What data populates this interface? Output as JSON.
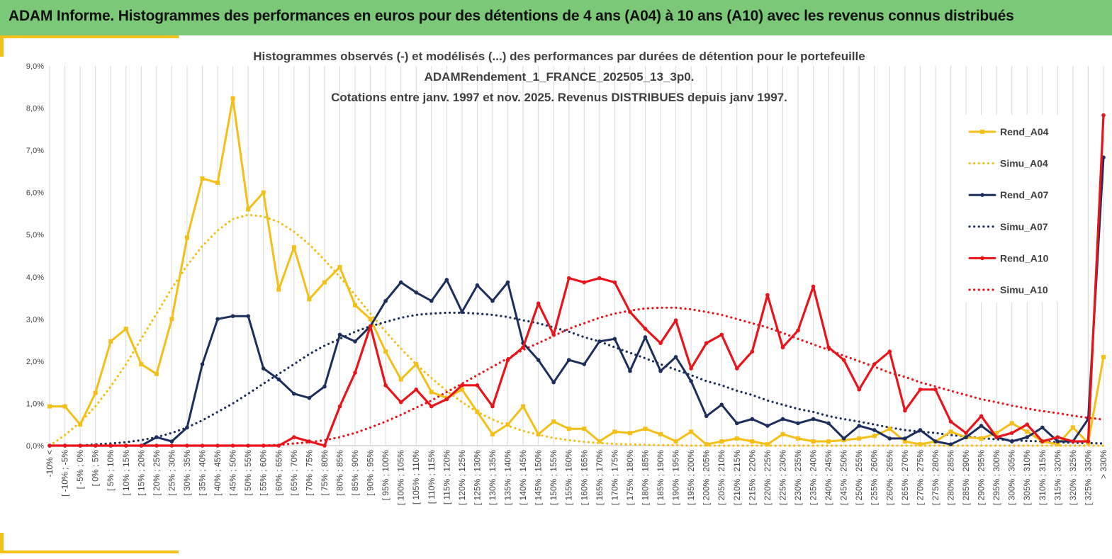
{
  "header": {
    "title": "ADAM Informe. Histogrammes des performances en euros pour des détentions de 4 ans (A04) à 10 ans (A10) avec les revenus connus distribués"
  },
  "colors": {
    "header_bg": "#7cc879",
    "accent": "#f2c21b",
    "a04": "#f4bf16",
    "a07": "#1c2e5c",
    "a10": "#e8141a"
  },
  "chart_data": {
    "type": "line",
    "title": [
      "Histogrammes observés (-) et modélisés (...) des performances par durées de détention pour le portefeuille",
      "ADAMRendement_1_FRANCE_202505_13_3p0.",
      "Cotations entre janv. 1997 et nov. 2025. Revenus DISTRIBUES depuis janv 1997."
    ],
    "ylim": [
      0,
      9
    ],
    "yticks": [
      0,
      1,
      2,
      3,
      4,
      5,
      6,
      7,
      8,
      9
    ],
    "ytick_labels": [
      "0,0%",
      "1,0%",
      "2,0%",
      "3,0%",
      "4,0%",
      "5,0%",
      "6,0%",
      "7,0%",
      "8,0%",
      "9,0%"
    ],
    "grid": "vertical",
    "legend_position": "right",
    "categories": [
      "-10% <",
      "[ -10% ; -5%",
      "[ -5% ; 0%",
      "[ 0% ; 5%",
      "[ 5% ; 10%",
      "[ 10% ; 15%",
      "[ 15% ; 20%",
      "[ 20% ; 25%",
      "[ 25% ; 30%",
      "[ 30% ; 35%",
      "[ 35% ; 40%",
      "[ 40% ; 45%",
      "[ 45% ; 50%",
      "[ 50% ; 55%",
      "[ 55% ; 60%",
      "[ 60% ; 65%",
      "[ 65% ; 70%",
      "[ 70% ; 75%",
      "[ 75% ; 80%",
      "[ 80% ; 85%",
      "[ 85% ; 90%",
      "[ 90% ; 95%",
      "[ 95% ; 100%",
      "[ 100% ; 105%",
      "[ 105% ; 110%",
      "[ 110% ; 115%",
      "[ 115% ; 120%",
      "[ 120% ; 125%",
      "[ 125% ; 130%",
      "[ 130% ; 135%",
      "[ 135% ; 140%",
      "[ 140% ; 145%",
      "[ 145% ; 150%",
      "[ 150% ; 155%",
      "[ 155% ; 160%",
      "[ 160% ; 165%",
      "[ 165% ; 170%",
      "[ 170% ; 175%",
      "[ 175% ; 180%",
      "[ 180% ; 185%",
      "[ 185% ; 190%",
      "[ 190% ; 195%",
      "[ 195% ; 200%",
      "[ 200% ; 205%",
      "[ 205% ; 210%",
      "[ 210% ; 215%",
      "[ 215% ; 220%",
      "[ 220% ; 225%",
      "[ 225% ; 230%",
      "[ 230% ; 235%",
      "[ 235% ; 240%",
      "[ 240% ; 245%",
      "[ 245% ; 250%",
      "[ 250% ; 255%",
      "[ 255% ; 260%",
      "[ 260% ; 265%",
      "[ 265% ; 270%",
      "[ 270% ; 275%",
      "[ 275% ; 280%",
      "[ 280% ; 285%",
      "[ 285% ; 290%",
      "[ 290% ; 295%",
      "[ 295% ; 300%",
      "[ 300% ; 305%",
      "[ 305% ; 310%",
      "[ 310% ; 315%",
      "[ 315% ; 320%",
      "[ 320% ; 325%",
      "[ 325% ; 330%",
      "> 330%"
    ],
    "series": [
      {
        "name": "Rend_A04",
        "style": "solid",
        "color": "#f4bf16",
        "marker": "square",
        "values": [
          0.93,
          0.93,
          0.5,
          1.25,
          2.47,
          2.77,
          1.93,
          1.7,
          3.0,
          4.93,
          6.33,
          6.23,
          8.23,
          5.6,
          6.0,
          3.7,
          4.7,
          3.47,
          3.87,
          4.23,
          3.33,
          3.0,
          2.23,
          1.57,
          1.93,
          1.27,
          1.13,
          1.33,
          0.8,
          0.27,
          0.5,
          0.93,
          0.27,
          0.57,
          0.4,
          0.4,
          0.1,
          0.33,
          0.3,
          0.4,
          0.27,
          0.1,
          0.33,
          0.03,
          0.1,
          0.17,
          0.1,
          0.03,
          0.27,
          0.17,
          0.1,
          0.1,
          0.13,
          0.17,
          0.23,
          0.4,
          0.1,
          0.03,
          0.1,
          0.33,
          0.2,
          0.17,
          0.3,
          0.53,
          0.33,
          0.1,
          0.03,
          0.43,
          0.07,
          2.1
        ]
      },
      {
        "name": "Simu_A04",
        "style": "dotted",
        "color": "#f4bf16",
        "values": [
          0.0,
          0.25,
          0.55,
          0.93,
          1.4,
          1.93,
          2.53,
          3.13,
          3.73,
          4.27,
          4.73,
          5.1,
          5.37,
          5.47,
          5.43,
          5.3,
          5.07,
          4.77,
          4.4,
          4.0,
          3.57,
          3.13,
          2.7,
          2.3,
          1.93,
          1.6,
          1.3,
          1.03,
          0.8,
          0.62,
          0.47,
          0.35,
          0.26,
          0.18,
          0.13,
          0.09,
          0.06,
          0.04,
          0.03,
          0.02,
          0.01,
          0.01,
          0.0,
          0.0,
          0.0,
          0.0,
          0.0,
          0.0,
          0.0,
          0.0,
          0.0,
          0.0,
          0.0,
          0.0,
          0.0,
          0.0,
          0.0,
          0.0,
          0.0,
          0.0,
          0.0,
          0.0,
          0.0,
          0.0,
          0.0,
          0.0,
          0.0,
          0.0,
          0.0,
          0.0
        ]
      },
      {
        "name": "Rend_A07",
        "style": "solid",
        "color": "#1c2e5c",
        "marker": "circle",
        "values": [
          0.0,
          0.0,
          0.0,
          0.0,
          0.0,
          0.0,
          0.0,
          0.2,
          0.1,
          0.43,
          1.93,
          3.0,
          3.07,
          3.07,
          1.83,
          1.57,
          1.23,
          1.13,
          1.4,
          2.63,
          2.47,
          2.83,
          3.43,
          3.87,
          3.63,
          3.43,
          3.93,
          3.17,
          3.8,
          3.43,
          3.87,
          2.43,
          2.03,
          1.5,
          2.03,
          1.93,
          2.47,
          2.53,
          1.77,
          2.57,
          1.77,
          2.1,
          1.53,
          0.7,
          0.97,
          0.53,
          0.63,
          0.47,
          0.63,
          0.53,
          0.63,
          0.53,
          0.17,
          0.47,
          0.37,
          0.17,
          0.17,
          0.37,
          0.1,
          0.03,
          0.2,
          0.47,
          0.2,
          0.1,
          0.2,
          0.43,
          0.1,
          0.1,
          0.63,
          6.83
        ]
      },
      {
        "name": "Simu_A07",
        "style": "dotted",
        "color": "#1c2e5c",
        "values": [
          0.0,
          0.0,
          0.0,
          0.03,
          0.05,
          0.08,
          0.13,
          0.2,
          0.3,
          0.43,
          0.6,
          0.8,
          1.0,
          1.23,
          1.47,
          1.7,
          1.93,
          2.17,
          2.37,
          2.53,
          2.7,
          2.83,
          2.93,
          3.03,
          3.1,
          3.13,
          3.15,
          3.15,
          3.13,
          3.1,
          3.05,
          2.97,
          2.9,
          2.8,
          2.7,
          2.57,
          2.47,
          2.33,
          2.2,
          2.07,
          1.93,
          1.8,
          1.67,
          1.53,
          1.43,
          1.3,
          1.2,
          1.07,
          0.97,
          0.87,
          0.8,
          0.7,
          0.63,
          0.57,
          0.5,
          0.43,
          0.37,
          0.33,
          0.3,
          0.25,
          0.22,
          0.18,
          0.15,
          0.13,
          0.11,
          0.1,
          0.08,
          0.07,
          0.06,
          0.05
        ]
      },
      {
        "name": "Rend_A10",
        "style": "solid",
        "color": "#e8141a",
        "marker": "circle",
        "values": [
          0.0,
          0.0,
          0.0,
          0.0,
          0.0,
          0.0,
          0.0,
          0.0,
          0.0,
          0.0,
          0.0,
          0.0,
          0.0,
          0.0,
          0.0,
          0.0,
          0.2,
          0.1,
          0.0,
          0.93,
          1.73,
          2.83,
          1.43,
          1.03,
          1.33,
          0.93,
          1.1,
          1.43,
          1.43,
          0.93,
          2.03,
          2.33,
          3.37,
          2.63,
          3.97,
          3.87,
          3.97,
          3.87,
          3.17,
          2.77,
          2.43,
          2.97,
          1.83,
          2.43,
          2.63,
          1.83,
          2.23,
          3.57,
          2.33,
          2.73,
          3.77,
          2.33,
          2.03,
          1.33,
          1.93,
          2.23,
          0.83,
          1.33,
          1.33,
          0.57,
          0.3,
          0.7,
          0.2,
          0.3,
          0.5,
          0.1,
          0.2,
          0.1,
          0.1,
          7.83
        ]
      },
      {
        "name": "Simu_A10",
        "style": "dotted",
        "color": "#e8141a",
        "values": [
          0.0,
          0.0,
          0.0,
          0.0,
          0.0,
          0.0,
          0.0,
          0.0,
          0.0,
          0.0,
          0.0,
          0.0,
          0.0,
          0.0,
          0.0,
          0.02,
          0.05,
          0.08,
          0.13,
          0.2,
          0.3,
          0.43,
          0.57,
          0.73,
          0.9,
          1.07,
          1.27,
          1.47,
          1.67,
          1.87,
          2.07,
          2.27,
          2.43,
          2.6,
          2.77,
          2.9,
          3.03,
          3.13,
          3.2,
          3.25,
          3.27,
          3.27,
          3.23,
          3.17,
          3.1,
          3.0,
          2.9,
          2.8,
          2.67,
          2.53,
          2.4,
          2.27,
          2.13,
          2.0,
          1.87,
          1.73,
          1.63,
          1.5,
          1.4,
          1.3,
          1.2,
          1.1,
          1.03,
          0.95,
          0.88,
          0.82,
          0.77,
          0.71,
          0.66,
          0.62
        ]
      }
    ]
  }
}
